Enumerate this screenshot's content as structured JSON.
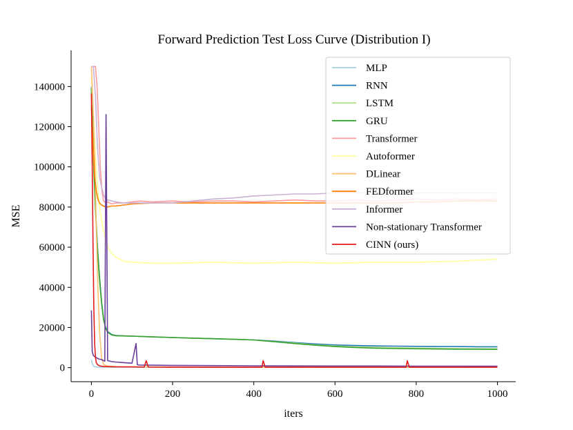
{
  "chart_data": {
    "type": "line",
    "title": "Forward Prediction Test Loss Curve (Distribution I)",
    "xlabel": "iters",
    "ylabel": "MSE",
    "xlim": [
      -50,
      1045
    ],
    "ylim": [
      -7000,
      158000
    ],
    "x_ticks": [
      0,
      200,
      400,
      600,
      800,
      1000
    ],
    "x_tick_labels": [
      "0",
      "200",
      "400",
      "600",
      "800",
      "1000"
    ],
    "y_ticks": [
      0,
      20000,
      40000,
      60000,
      80000,
      100000,
      120000,
      140000
    ],
    "y_tick_labels": [
      "0",
      "20000",
      "40000",
      "60000",
      "80000",
      "100000",
      "120000",
      "140000"
    ],
    "legend_position": "top-right",
    "series": [
      {
        "name": "MLP",
        "color": "#a6cee3",
        "x": [
          0,
          3,
          6,
          10,
          15,
          25,
          40,
          60,
          100,
          200,
          400,
          600,
          800,
          1000
        ],
        "y": [
          3800,
          1500,
          700,
          400,
          300,
          250,
          220,
          200,
          180,
          170,
          160,
          150,
          150,
          150
        ]
      },
      {
        "name": "RNN",
        "color": "#1f78b4",
        "x": [
          0,
          3,
          6,
          10,
          15,
          20,
          25,
          30,
          35,
          40,
          50,
          60,
          80,
          100,
          150,
          200,
          250,
          300,
          350,
          400,
          450,
          500,
          550,
          600,
          650,
          700,
          750,
          800,
          850,
          900,
          950,
          1000
        ],
        "y": [
          140000,
          120000,
          100000,
          80000,
          60000,
          45000,
          33000,
          24000,
          20000,
          18000,
          16500,
          16000,
          15800,
          15700,
          15300,
          15000,
          14700,
          14400,
          14100,
          13800,
          13200,
          12500,
          11800,
          11300,
          11000,
          10800,
          10700,
          10600,
          10500,
          10500,
          10400,
          10400
        ]
      },
      {
        "name": "LSTM",
        "color": "#b2df8a",
        "x": [
          0,
          3,
          6,
          10,
          15,
          20,
          25,
          30,
          35,
          40,
          50,
          60,
          80,
          100,
          150,
          200,
          250,
          300,
          350,
          400,
          450,
          500,
          550,
          600,
          650,
          700,
          750,
          800,
          850,
          900,
          950,
          1000
        ],
        "y": [
          138000,
          118000,
          98000,
          78000,
          58000,
          43000,
          32000,
          23500,
          19500,
          17500,
          16200,
          15900,
          15800,
          15700,
          15300,
          15000,
          14700,
          14400,
          14100,
          13800,
          13000,
          12200,
          11400,
          10800,
          10400,
          10100,
          9900,
          9700,
          9600,
          9500,
          9400,
          9400
        ]
      },
      {
        "name": "GRU",
        "color": "#33a02c",
        "x": [
          0,
          3,
          6,
          10,
          15,
          20,
          25,
          30,
          35,
          40,
          50,
          60,
          80,
          100,
          150,
          200,
          250,
          300,
          350,
          400,
          450,
          500,
          550,
          600,
          650,
          700,
          750,
          800,
          850,
          900,
          950,
          1000
        ],
        "y": [
          139000,
          119000,
          99000,
          79000,
          59000,
          44000,
          32500,
          23800,
          19700,
          17700,
          16300,
          15900,
          15800,
          15700,
          15300,
          15000,
          14700,
          14400,
          14100,
          13800,
          12900,
          12000,
          11200,
          10500,
          10000,
          9700,
          9500,
          9400,
          9300,
          9200,
          9200,
          9100
        ]
      },
      {
        "name": "Transformer",
        "color": "#fb9a99",
        "x": [
          0,
          5,
          10,
          14,
          18,
          22,
          26,
          30,
          35,
          40,
          50,
          60,
          80,
          100,
          120,
          150,
          200,
          250,
          300,
          350,
          400,
          450,
          500,
          550,
          600,
          650,
          700,
          750,
          800,
          850,
          900,
          950,
          1000
        ],
        "y": [
          150000,
          150000,
          150000,
          140000,
          120000,
          100000,
          88000,
          83000,
          82000,
          82500,
          81500,
          82000,
          82000,
          82500,
          83000,
          82500,
          83000,
          82500,
          83000,
          83000,
          82500,
          83000,
          83500,
          83000,
          83000,
          83500,
          83000,
          83500,
          84000,
          83500,
          84000,
          83500,
          84000
        ]
      },
      {
        "name": "Autoformer",
        "color": "#ffff99",
        "x": [
          0,
          5,
          10,
          15,
          20,
          25,
          30,
          35,
          40,
          50,
          60,
          70,
          80,
          100,
          150,
          200,
          300,
          400,
          500,
          600,
          700,
          800,
          900,
          950,
          1000
        ],
        "y": [
          145000,
          125000,
          105000,
          90000,
          80000,
          73000,
          68000,
          64000,
          60000,
          57000,
          55000,
          54000,
          53000,
          52500,
          52000,
          52000,
          52500,
          52000,
          52500,
          52000,
          52500,
          52500,
          53000,
          53500,
          54000
        ]
      },
      {
        "name": "DLinear",
        "color": "#fdbf6f",
        "x": [
          0,
          4,
          8,
          12,
          16,
          20,
          25,
          30,
          40,
          60,
          100,
          200,
          400,
          600,
          800,
          1000
        ],
        "y": [
          150000,
          130000,
          105000,
          70000,
          40000,
          18000,
          5000,
          1500,
          800,
          500,
          400,
          300,
          250,
          200,
          200,
          200
        ]
      },
      {
        "name": "FEDformer",
        "color": "#ff7f00",
        "x": [
          0,
          4,
          8,
          12,
          16,
          20,
          25,
          30,
          35,
          40,
          50,
          60,
          80,
          100,
          150,
          200,
          250,
          300,
          350,
          400,
          450,
          500,
          550,
          600,
          650,
          700,
          750,
          800,
          850,
          900,
          950,
          1000
        ],
        "y": [
          130000,
          110000,
          95000,
          88000,
          84000,
          82000,
          81000,
          80500,
          80000,
          80000,
          80500,
          80500,
          81000,
          81500,
          82000,
          82000,
          82000,
          82000,
          82000,
          82000,
          82000,
          82000,
          82000,
          82000,
          82000,
          82000,
          82000,
          82500,
          82500,
          83000,
          83000,
          83000
        ]
      },
      {
        "name": "Informer",
        "color": "#cab2d6",
        "x": [
          0,
          5,
          10,
          15,
          20,
          25,
          30,
          35,
          40,
          50,
          60,
          80,
          100,
          150,
          200,
          250,
          300,
          350,
          400,
          450,
          500,
          550,
          600,
          650,
          700,
          750,
          800,
          850,
          900,
          950,
          1000
        ],
        "y": [
          150000,
          150000,
          135000,
          110000,
          95000,
          90000,
          86000,
          84000,
          83500,
          83000,
          82500,
          82000,
          82000,
          82000,
          82000,
          83000,
          84000,
          84500,
          85500,
          86000,
          86500,
          86500,
          87000,
          87000,
          87000,
          87000,
          87000,
          87000,
          87000,
          87000,
          87000
        ]
      },
      {
        "name": "Non-stationary Transformer",
        "color": "#6a3d9a",
        "x": [
          0,
          2,
          5,
          8,
          12,
          16,
          20,
          25,
          30,
          33,
          36,
          40,
          50,
          60,
          80,
          100,
          110,
          113,
          118,
          150,
          200,
          300,
          400,
          500,
          600,
          700,
          800,
          900,
          1000
        ],
        "y": [
          28500,
          8000,
          6000,
          5500,
          5000,
          4500,
          4200,
          4000,
          3500,
          3200,
          126000,
          3500,
          3000,
          2800,
          2500,
          2200,
          12000,
          1500,
          1300,
          1200,
          1100,
          1000,
          900,
          850,
          800,
          800,
          750,
          750,
          700
        ]
      },
      {
        "name": "CINN (ours)",
        "color": "#e31a1c",
        "x": [
          0,
          2,
          4,
          6,
          8,
          10,
          12,
          15,
          20,
          25,
          30,
          40,
          60,
          100,
          130,
          135,
          140,
          200,
          300,
          400,
          420,
          423,
          428,
          500,
          600,
          700,
          775,
          778,
          783,
          800,
          900,
          1000
        ],
        "y": [
          136500,
          100000,
          60000,
          30000,
          12000,
          5000,
          2500,
          1500,
          900,
          700,
          600,
          500,
          400,
          350,
          300,
          3500,
          300,
          250,
          200,
          200,
          200,
          3500,
          200,
          200,
          200,
          200,
          200,
          3500,
          200,
          200,
          200,
          200
        ]
      }
    ]
  }
}
